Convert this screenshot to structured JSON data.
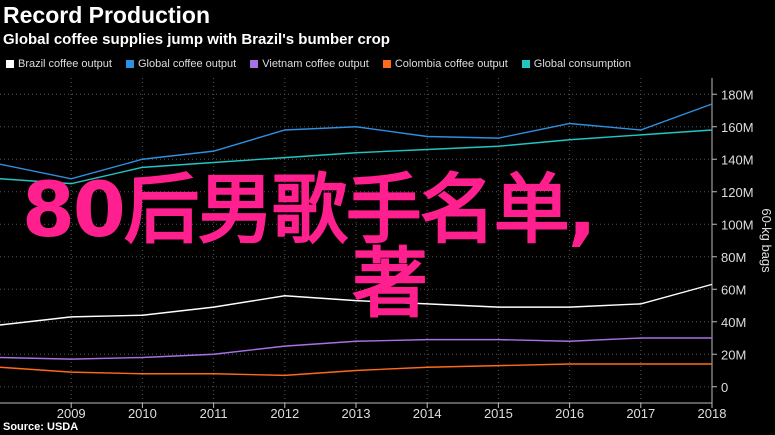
{
  "header": {
    "title": "Record Production",
    "subtitle": "Global coffee supplies jump with Brazil's bumber crop"
  },
  "source": "Source: USDA",
  "overlay": {
    "line1": "80后男歌手名单,",
    "line2": "著",
    "color": "#ff1f8e"
  },
  "chart_data": {
    "type": "line",
    "x": [
      2008,
      2009,
      2010,
      2011,
      2012,
      2013,
      2014,
      2015,
      2016,
      2017,
      2018
    ],
    "xlim": [
      2008,
      2018
    ],
    "xticks": [
      "2009",
      "2010",
      "2011",
      "2012",
      "2013",
      "2014",
      "2015",
      "2016",
      "2017",
      "2018"
    ],
    "ylabel": "60-kg bags",
    "ylim": [
      -10,
      190
    ],
    "yticks": [
      "0",
      "20M",
      "40M",
      "60M",
      "80M",
      "100M",
      "120M",
      "140M",
      "160M",
      "180M"
    ],
    "grid": true,
    "legend_position": "top-left",
    "series": [
      {
        "name": "Brazil coffee output",
        "color": "#ffffff",
        "values": [
          38,
          43,
          44,
          49,
          56,
          53,
          51,
          49,
          49,
          51,
          63
        ]
      },
      {
        "name": "Global coffee output",
        "color": "#2f8fe0",
        "values": [
          137,
          128,
          140,
          145,
          158,
          160,
          154,
          153,
          162,
          158,
          174
        ]
      },
      {
        "name": "Vietnam coffee output",
        "color": "#a970e8",
        "values": [
          18,
          17,
          18,
          20,
          25,
          28,
          29,
          29,
          28,
          30,
          30
        ]
      },
      {
        "name": "Colombia coffee output",
        "color": "#ff6a1a",
        "values": [
          12,
          9,
          8,
          8,
          7,
          10,
          12,
          13,
          14,
          14,
          14
        ]
      },
      {
        "name": "Global consumption",
        "color": "#22c5c5",
        "values": [
          128,
          125,
          135,
          138,
          141,
          144,
          146,
          148,
          152,
          155,
          158
        ]
      }
    ]
  }
}
